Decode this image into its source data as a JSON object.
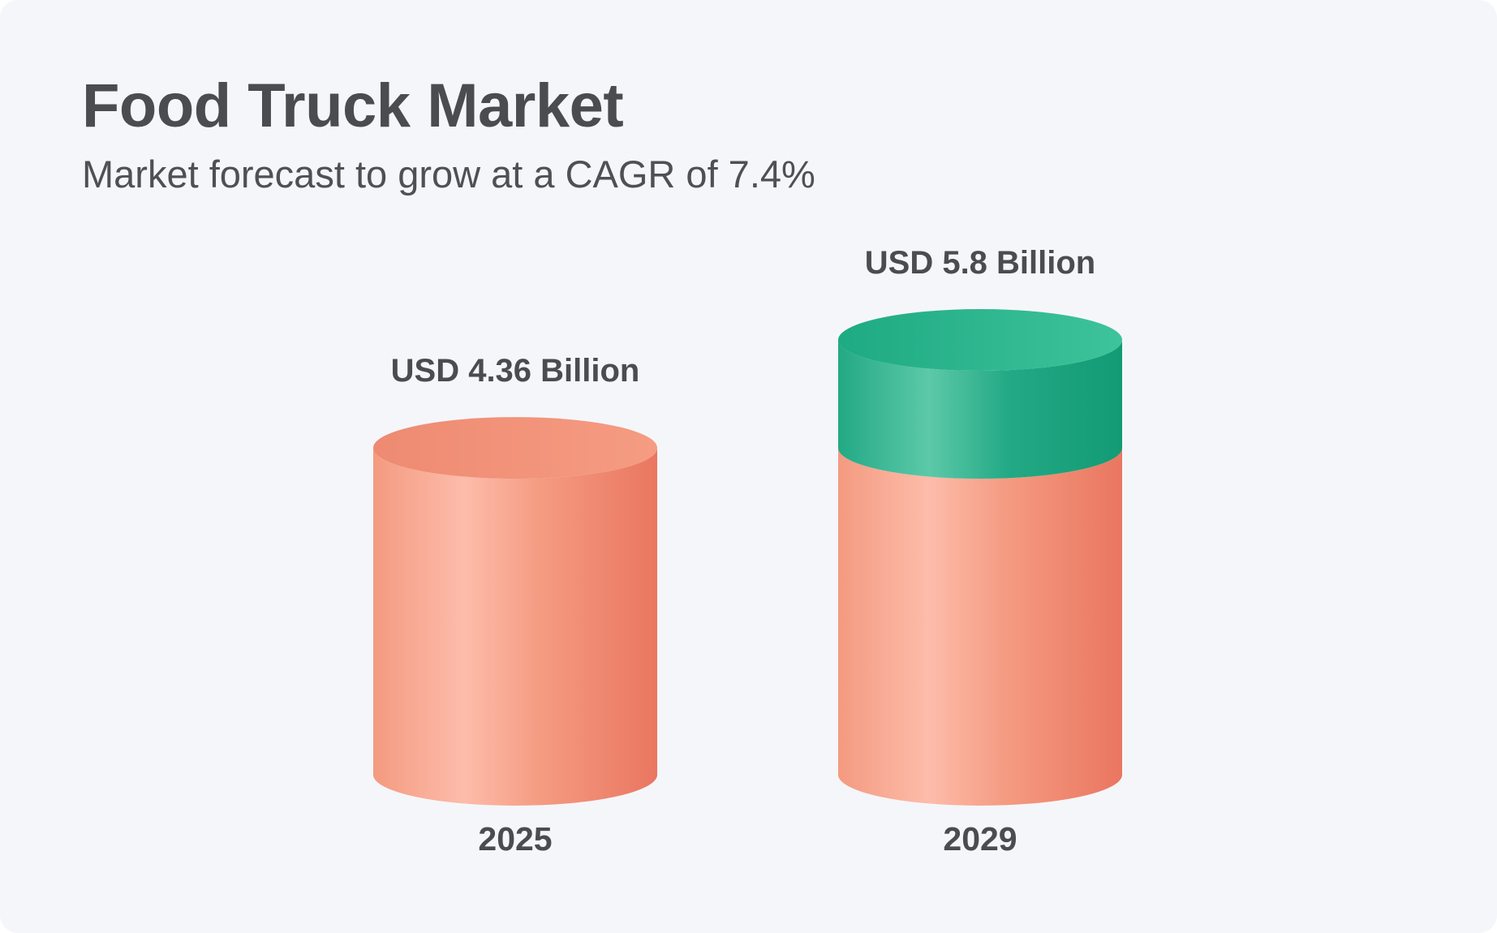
{
  "title": "Food Truck Market",
  "subtitle": "Market forecast to grow at a CAGR of 7.4%",
  "colors": {
    "base": "#f49a80",
    "base_light": "#fdbcaa",
    "base_dark": "#ea7660",
    "growth": "#23a985",
    "growth_light": "#5cc9a8",
    "growth_dark": "#129b74",
    "text": "#4a4c4f",
    "background": "#f5f6fa"
  },
  "chart_data": {
    "type": "bar",
    "categories": [
      "2025",
      "2029"
    ],
    "values": [
      4.36,
      5.8
    ],
    "value_labels": [
      "USD 4.36 Billion",
      "USD 5.8 Billion"
    ],
    "unit": "USD Billion",
    "segments": {
      "base_value": 4.36,
      "growth_value": 1.44
    },
    "cagr": "7.4%",
    "xlabel": "",
    "ylabel": "",
    "grid": false,
    "ylim": [
      0,
      5.8
    ]
  }
}
